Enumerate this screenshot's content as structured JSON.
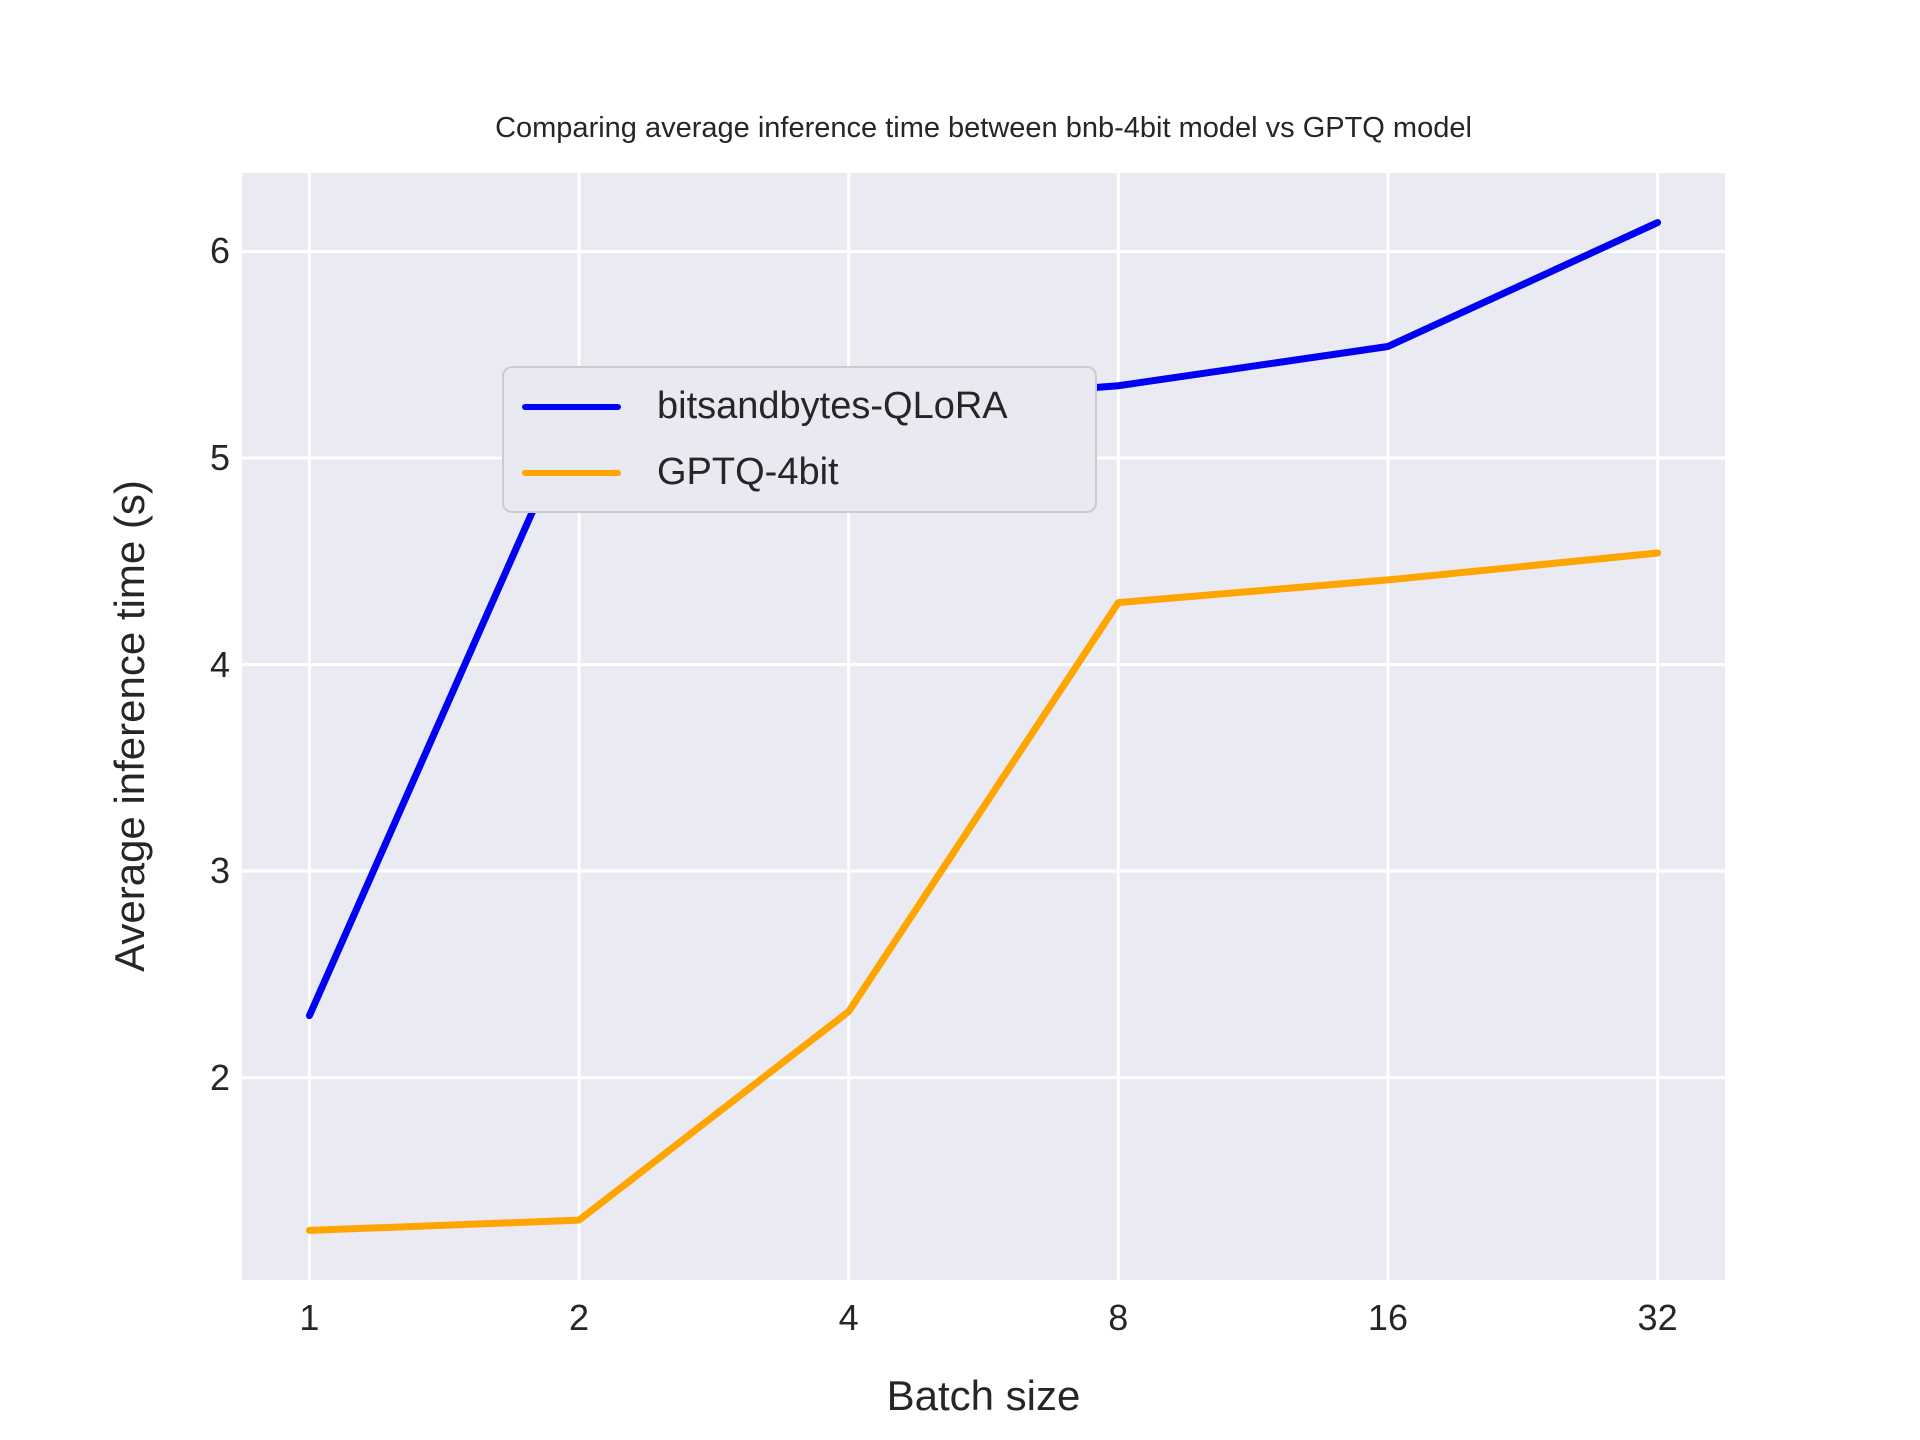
{
  "title": "Comparing average inference time between bnb-4bit model vs GPTQ model",
  "chart_data": {
    "type": "line",
    "title": "Comparing average inference time between bnb-4bit model vs GPTQ model",
    "xlabel": "Batch size",
    "ylabel": "Average inference time (s)",
    "categories": [
      "1",
      "2",
      "4",
      "8",
      "16",
      "32"
    ],
    "series": [
      {
        "name": "bitsandbytes-QLoRA",
        "color": "#0000f5",
        "values": [
          2.3,
          5.25,
          5.25,
          5.35,
          5.54,
          6.14
        ]
      },
      {
        "name": "GPTQ-4bit",
        "color": "#ffa500",
        "values": [
          1.26,
          1.31,
          2.32,
          4.3,
          4.41,
          4.54
        ]
      }
    ],
    "yticks": [
      "2",
      "3",
      "4",
      "5",
      "6"
    ],
    "ylim": [
      1.02,
      6.38
    ],
    "x_scale": "log2-categorical",
    "grid": true,
    "grid_color": "#ffffff",
    "plot_bg": "#eaeaf2",
    "text_color": "#262626",
    "legend_position": "upper left",
    "line_width": 7
  }
}
